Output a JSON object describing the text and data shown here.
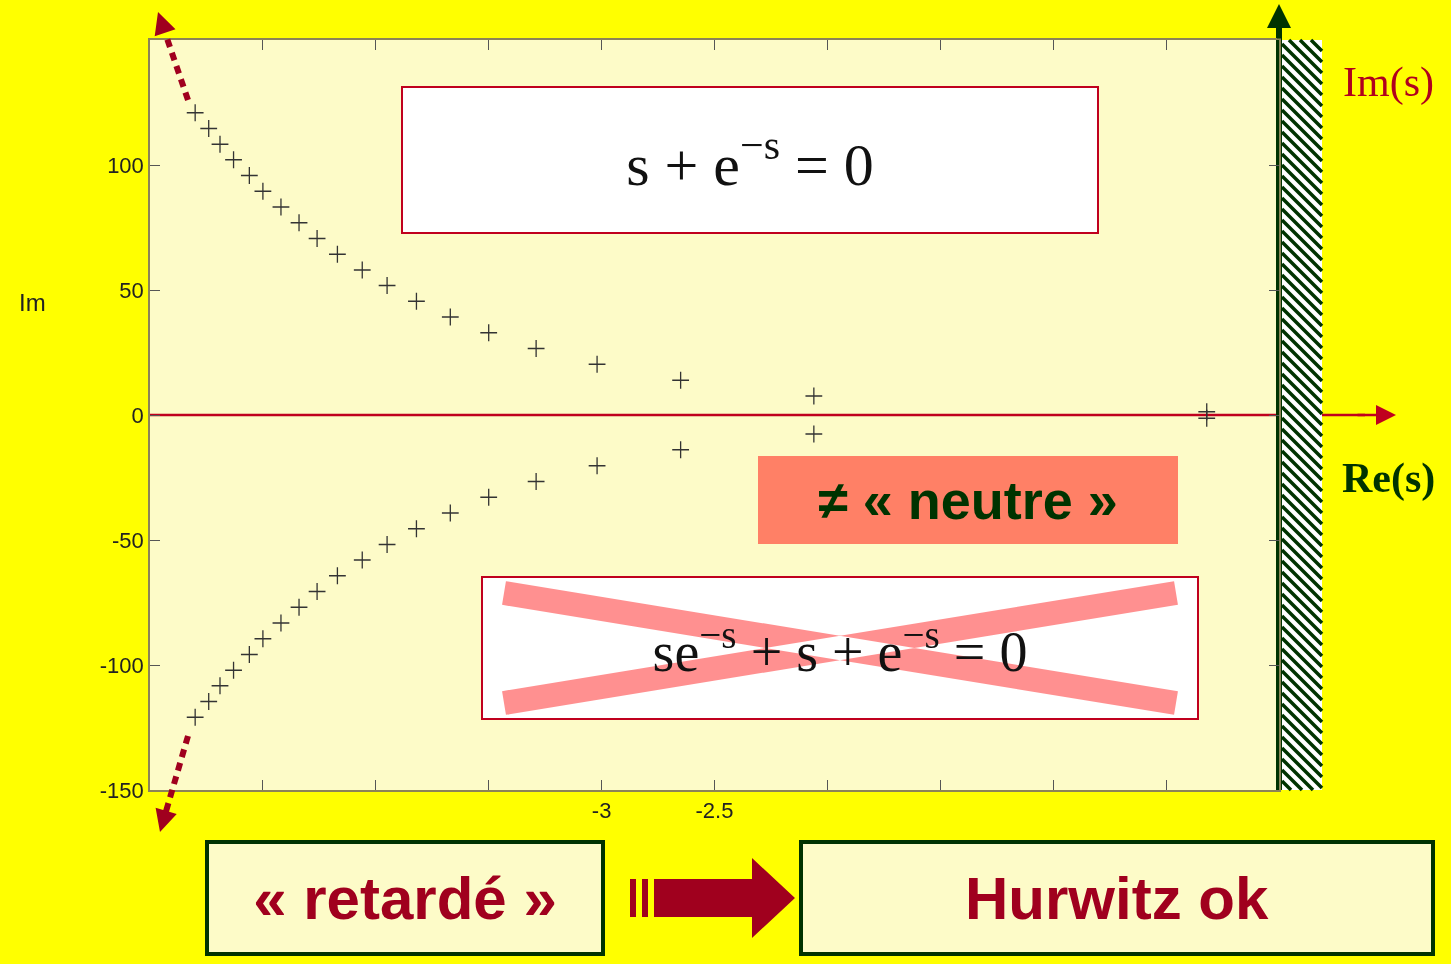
{
  "chart_data": {
    "type": "scatter",
    "ylabel": "Im",
    "x": [
      -4.8,
      -4.74,
      -4.69,
      -4.63,
      -4.56,
      -4.5,
      -4.42,
      -4.34,
      -4.26,
      -4.17,
      -4.06,
      -3.95,
      -3.82,
      -3.67,
      -3.5,
      -3.29,
      -3.02,
      -2.65,
      -2.06,
      -0.32,
      -0.32,
      -2.06,
      -2.65,
      -3.02,
      -3.29,
      -3.5,
      -3.67,
      -3.82,
      -3.95,
      -4.06,
      -4.17,
      -4.26,
      -4.34,
      -4.42,
      -4.5,
      -4.56,
      -4.63,
      -4.69,
      -4.74,
      -4.8
    ],
    "values": [
      120.9,
      114.6,
      108.3,
      102.1,
      95.8,
      89.5,
      83.2,
      76.9,
      70.6,
      64.3,
      58.0,
      51.8,
      45.5,
      39.2,
      32.9,
      26.6,
      20.3,
      13.9,
      7.6,
      1.3,
      -1.3,
      -7.6,
      -13.9,
      -20.3,
      -26.6,
      -32.9,
      -39.2,
      -45.5,
      -51.8,
      -58.0,
      -64.3,
      -70.6,
      -76.9,
      -83.2,
      -89.5,
      -95.8,
      -102.1,
      -108.3,
      -114.6,
      -120.9
    ],
    "color": "#333333",
    "marker": "cross",
    "xlim": [
      -5,
      0
    ],
    "ylim": [
      -150,
      150
    ],
    "xticks": [
      {
        "value": -5,
        "label": null
      },
      {
        "value": -4.5,
        "label": null
      },
      {
        "value": -4,
        "label": null
      },
      {
        "value": -3.5,
        "label": null
      },
      -3,
      -2.5,
      {
        "value": -2,
        "label": null
      },
      {
        "value": -1.5,
        "label": null
      },
      {
        "value": -1,
        "label": null
      },
      {
        "value": -0.5,
        "label": null
      },
      {
        "value": 0,
        "label": null
      }
    ],
    "yticks": [
      -150,
      -100,
      -50,
      0,
      50,
      100,
      {
        "value": 150,
        "label": null
      }
    ],
    "grid": false,
    "ref_lines": [
      {
        "axis": "y",
        "value": 0,
        "color": "#c0001e"
      },
      {
        "axis": "x",
        "value": 0,
        "color": "#003300"
      }
    ],
    "annotations": [
      "s + e$^{−s}$ = 0",
      "≠ « neutre »",
      "se$^{−s}$ + s + e$^{−s}$ = 0",
      "« retardé »",
      "Hurwitz ok",
      "Re(s)",
      "Im(s)"
    ]
  }
}
